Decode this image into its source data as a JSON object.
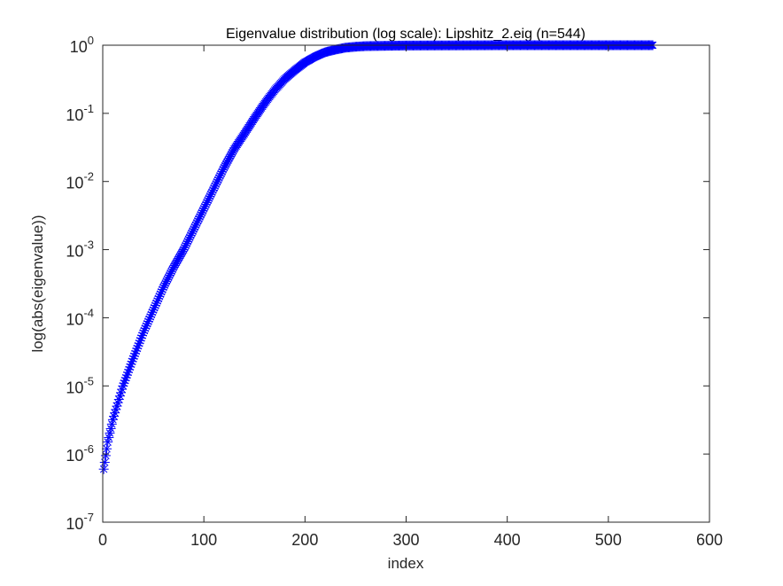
{
  "chart_data": {
    "type": "scatter",
    "title": "Eigenvalue distribution (log scale): Lipshitz_2.eig (n=544)",
    "xlabel": "index",
    "ylabel": "log(abs(eigenvalue))",
    "xlim": [
      0,
      600
    ],
    "ylim_log10": [
      -7,
      0
    ],
    "yscale": "log",
    "grid": false,
    "marker": "*",
    "marker_color": "#0000ff",
    "x_ticks": [
      "0",
      "100",
      "200",
      "300",
      "400",
      "500",
      "600"
    ],
    "y_ticks": [
      {
        "base": "10",
        "exp": "0"
      },
      {
        "base": "10",
        "exp": "-1"
      },
      {
        "base": "10",
        "exp": "-2"
      },
      {
        "base": "10",
        "exp": "-3"
      },
      {
        "base": "10",
        "exp": "-4"
      },
      {
        "base": "10",
        "exp": "-5"
      },
      {
        "base": "10",
        "exp": "-6"
      },
      {
        "base": "10",
        "exp": "-7"
      }
    ],
    "n": 544,
    "series": [
      {
        "x": [
          1,
          5,
          10,
          20,
          30,
          40,
          50,
          60,
          70,
          80,
          90,
          100,
          110,
          120,
          130,
          140,
          150,
          160,
          170,
          180,
          190,
          200,
          210,
          220,
          230,
          240,
          250,
          260,
          280,
          300,
          400,
          500,
          544
        ],
        "y": [
          6e-07,
          1.5e-06,
          3.2e-06,
          1e-05,
          2.5e-05,
          6e-05,
          0.00013,
          0.00028,
          0.00055,
          0.001,
          0.002,
          0.004,
          0.008,
          0.016,
          0.03,
          0.05,
          0.085,
          0.14,
          0.22,
          0.32,
          0.43,
          0.56,
          0.68,
          0.79,
          0.86,
          0.92,
          0.95,
          0.97,
          0.98,
          0.99,
          1.0,
          1.0,
          1.0
        ]
      }
    ]
  }
}
